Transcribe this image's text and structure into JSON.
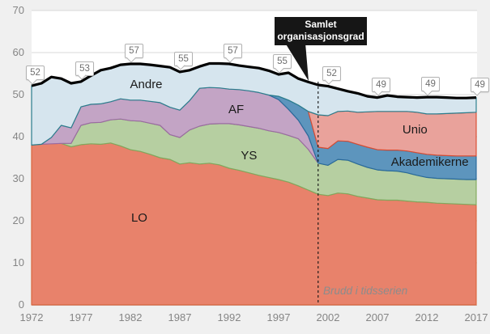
{
  "chart_data": {
    "type": "area",
    "stacked": true,
    "title": "",
    "xlabel": "",
    "ylabel": "",
    "ylim": [
      0,
      70
    ],
    "grid": true,
    "legend_position": "labels-inside-areas",
    "x": [
      1972,
      1973,
      1974,
      1975,
      1976,
      1977,
      1978,
      1979,
      1980,
      1981,
      1982,
      1983,
      1984,
      1985,
      1986,
      1987,
      1988,
      1989,
      1990,
      1991,
      1992,
      1993,
      1994,
      1995,
      1996,
      1997,
      1998,
      1999,
      2000,
      2001,
      2002,
      2003,
      2004,
      2005,
      2006,
      2007,
      2008,
      2009,
      2010,
      2011,
      2012,
      2013,
      2014,
      2015,
      2016,
      2017
    ],
    "yticks": [
      0,
      10,
      20,
      30,
      40,
      50,
      60,
      70
    ],
    "xticks": [
      1972,
      1977,
      1982,
      1987,
      1992,
      1997,
      2002,
      2007,
      2012,
      2017
    ],
    "series": [
      {
        "name": "LO",
        "fill": "#e8826b",
        "stroke": "#d8663f",
        "values": [
          38.0,
          38.2,
          38.3,
          38.4,
          37.6,
          38.1,
          38.3,
          38.2,
          38.5,
          37.8,
          36.9,
          36.5,
          35.8,
          35.0,
          34.6,
          33.5,
          33.8,
          33.5,
          33.7,
          33.3,
          32.5,
          32.0,
          31.4,
          30.8,
          30.3,
          29.8,
          29.2,
          28.3,
          27.3,
          26.3,
          26.0,
          26.6,
          26.4,
          25.8,
          25.4,
          25.0,
          24.9,
          24.9,
          24.7,
          24.5,
          24.4,
          24.2,
          24.1,
          24.0,
          23.9,
          23.8
        ]
      },
      {
        "name": "YS",
        "fill": "#b6cfa1",
        "stroke": "#80a85d",
        "values": [
          0,
          0,
          0,
          0,
          0.8,
          4.6,
          5.0,
          5.2,
          5.5,
          6.4,
          6.9,
          7.2,
          7.4,
          7.7,
          5.9,
          6.3,
          7.8,
          9.0,
          9.3,
          9.8,
          10.6,
          10.8,
          11.0,
          11.2,
          11.1,
          11.2,
          11.1,
          11.2,
          9.7,
          7.4,
          7.2,
          8.0,
          8.0,
          7.7,
          7.3,
          7.1,
          7.0,
          6.9,
          6.7,
          6.3,
          5.9,
          5.9,
          5.9,
          5.9,
          5.9,
          6.0
        ]
      },
      {
        "name": "AF",
        "fill": "#c3a4c5",
        "stroke": "#9a6ba1",
        "values": [
          0,
          0,
          1.5,
          4.3,
          3.7,
          4.4,
          4.4,
          4.4,
          4.3,
          4.8,
          4.9,
          5.0,
          5.2,
          5.4,
          6.5,
          6.5,
          7.0,
          9.0,
          8.7,
          8.5,
          8.2,
          8.4,
          8.5,
          8.5,
          8.5,
          7.8,
          6.2,
          4.4,
          3.2,
          0,
          0,
          0,
          0,
          0,
          0,
          0,
          0,
          0,
          0,
          0,
          0,
          0,
          0,
          0,
          0,
          0
        ]
      },
      {
        "name": "Akademikerne",
        "fill": "#5d95bd",
        "stroke": "#2a6a9b",
        "values": [
          0,
          0,
          0,
          0,
          0,
          0,
          0,
          0,
          0,
          0,
          0,
          0,
          0,
          0,
          0,
          0,
          0,
          0,
          0,
          0,
          0,
          0,
          0,
          0,
          0,
          0.8,
          2.2,
          3.6,
          5.8,
          3.8,
          4.0,
          4.4,
          4.5,
          4.7,
          4.8,
          4.8,
          4.9,
          5.0,
          5.2,
          5.4,
          5.5,
          5.5,
          5.5,
          5.5,
          5.6,
          5.6
        ]
      },
      {
        "name": "Unio",
        "fill": "#e9a29b",
        "stroke": "#d74c33",
        "values": [
          0,
          0,
          0,
          0,
          0,
          0,
          0,
          0,
          0,
          0,
          0,
          0,
          0,
          0,
          0,
          0,
          0,
          0,
          0,
          0,
          0,
          0,
          0,
          0,
          0,
          0,
          0,
          0,
          0,
          7.7,
          7.8,
          7.0,
          7.2,
          7.6,
          8.4,
          9.1,
          9.2,
          9.2,
          9.4,
          9.6,
          9.6,
          9.8,
          10.0,
          10.2,
          10.3,
          10.4
        ]
      },
      {
        "name": "Andre",
        "fill": "#d6e5ee",
        "stroke": "#2a7d8c",
        "values": [
          14.1,
          14.5,
          14.4,
          11.1,
          10.6,
          6.0,
          6.8,
          8.0,
          8.0,
          8.1,
          8.6,
          8.6,
          8.7,
          8.7,
          9.5,
          9.1,
          7.2,
          5.2,
          5.7,
          5.8,
          6.0,
          5.7,
          5.7,
          5.8,
          5.8,
          5.2,
          6.5,
          6.3,
          7.0,
          7.1,
          7.0,
          5.4,
          4.7,
          4.5,
          3.7,
          3.3,
          3.8,
          3.5,
          3.4,
          3.5,
          4.0,
          4.0,
          3.8,
          3.6,
          3.5,
          3.5
        ]
      }
    ],
    "total_line": {
      "name": "Samlet organisasjonsgrad",
      "color": "#000000",
      "is_sum_of_series": true
    },
    "value_labels": [
      {
        "year": 1972,
        "value": 52
      },
      {
        "year": 1977,
        "value": 53
      },
      {
        "year": 1982,
        "value": 57
      },
      {
        "year": 1987,
        "value": 55
      },
      {
        "year": 1992,
        "value": 57
      },
      {
        "year": 1997,
        "value": 55
      },
      {
        "year": 2002,
        "value": 52
      },
      {
        "year": 2007,
        "value": 49
      },
      {
        "year": 2012,
        "value": 49
      },
      {
        "year": 2017,
        "value": 49
      }
    ],
    "break_line": {
      "year": 2001,
      "label": "Brudd i tidsserien"
    }
  },
  "annotations": {
    "total_callout": {
      "text": "Samlet organisasjonsgrad"
    },
    "series_labels": [
      {
        "text": "LO",
        "year": 1982.9,
        "value": 20.6
      },
      {
        "text": "YS",
        "year": 1994.0,
        "value": 35.4
      },
      {
        "text": "AF",
        "year": 1992.7,
        "value": 46.3
      },
      {
        "text": "Andre",
        "year": 1983.6,
        "value": 52.3
      },
      {
        "text": "Unio",
        "year": 2010.8,
        "value": 41.5
      },
      {
        "text": "Akademikerne",
        "year": 2012.3,
        "value": 33.8
      }
    ]
  },
  "colors": {
    "background": "#f0f0f0",
    "plot_background": "#ffffff",
    "gridline": "#d9d9d9",
    "axis_line": "#c9c9c9",
    "axis_text": "#858585",
    "total_line": "#000000",
    "callout_bg": "#ffffff",
    "callout_border": "#b2b2b2",
    "callout_text": "#6f6f6f",
    "tooltip_bg": "#161616",
    "tooltip_text": "#ffffff",
    "break_line_color": "#111111",
    "break_label_text": "#8c8c8c"
  }
}
